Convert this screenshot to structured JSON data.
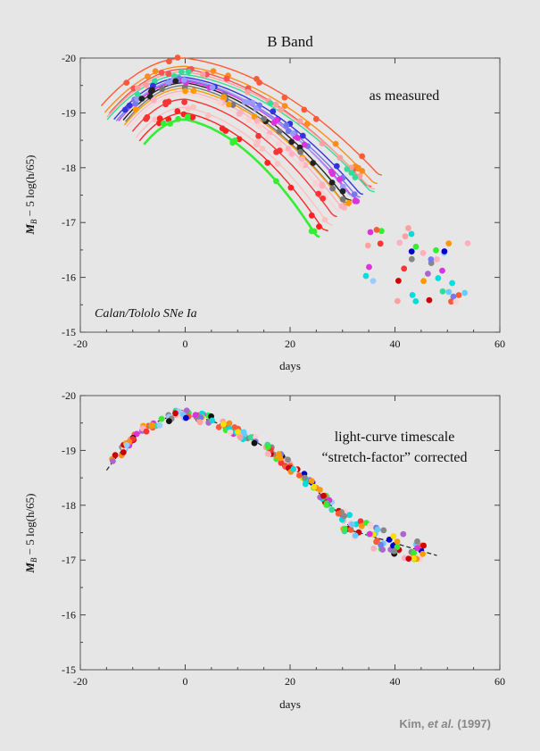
{
  "chart_data": [
    {
      "type": "scatter",
      "title": "B Band",
      "annotation": "as measured",
      "caption": "Calan/Tololo SNe Ia",
      "xlabel": "days",
      "ylabel_main": "M",
      "ylabel_sub": "B",
      "ylabel_rest": " − 5 log(h/65)",
      "xlim": [
        -20,
        60
      ],
      "ylim": [
        -20,
        -15
      ],
      "x_ticks": [
        -20,
        0,
        20,
        40,
        60
      ],
      "y_ticks": [
        -20,
        -19,
        -18,
        -17,
        -16,
        -15
      ],
      "y_tick_labels": [
        "-20",
        "-19",
        "-18",
        "-17",
        "-16",
        "-15"
      ],
      "curve_peaks": [
        {
          "color": "#ff5a36",
          "peak": -20.0,
          "stretch": 1.15
        },
        {
          "color": "#ff8c1a",
          "peak": -19.85,
          "stretch": 1.12
        },
        {
          "color": "#ff5252",
          "peak": -19.8,
          "stretch": 1.08
        },
        {
          "color": "#ffa0a0",
          "peak": -19.75,
          "stretch": 1.1
        },
        {
          "color": "#33dd99",
          "peak": -19.7,
          "stretch": 1.1
        },
        {
          "color": "#3333dd",
          "peak": -19.65,
          "stretch": 1.04
        },
        {
          "color": "#7777ee",
          "peak": -19.6,
          "stretch": 1.02
        },
        {
          "color": "#dd33dd",
          "peak": -19.58,
          "stretch": 1.0
        },
        {
          "color": "#9999ff",
          "peak": -19.62,
          "stretch": 0.98
        },
        {
          "color": "#222222",
          "peak": -19.55,
          "stretch": 0.96
        },
        {
          "color": "#777777",
          "peak": -19.5,
          "stretch": 0.94
        },
        {
          "color": "#ff9900",
          "peak": -19.45,
          "stretch": 0.95
        },
        {
          "color": "#ffb0c0",
          "peak": -19.4,
          "stretch": 0.93
        },
        {
          "color": "#ffd0d0",
          "peak": -19.35,
          "stretch": 0.9
        },
        {
          "color": "#ff3333",
          "peak": -19.25,
          "stretch": 0.88
        },
        {
          "color": "#ffc0c0",
          "peak": -19.1,
          "stretch": 0.85
        },
        {
          "color": "#ff2222",
          "peak": -19.0,
          "stretch": 0.82
        },
        {
          "color": "#33ee33",
          "peak": -18.88,
          "stretch": 0.78
        }
      ]
    },
    {
      "type": "scatter",
      "annotation_line1": "light-curve timescale",
      "annotation_line2": "“stretch-factor” corrected",
      "xlabel": "days",
      "ylabel_main": "M",
      "ylabel_sub": "B",
      "ylabel_rest": " − 5 log(h/65)",
      "xlim": [
        -20,
        60
      ],
      "ylim": [
        -20,
        -15
      ],
      "x_ticks": [
        -20,
        0,
        20,
        40,
        60
      ],
      "y_ticks": [
        -20,
        -19,
        -18,
        -17,
        -16,
        -15
      ],
      "y_tick_labels": [
        "-20",
        "-19",
        "-18",
        "-17",
        "-16",
        "-15"
      ],
      "template_peak": -19.65
    }
  ],
  "credit": {
    "author": "Kim, ",
    "etal": "et al.",
    "year": " (1997)"
  },
  "palette": [
    "#ff5a36",
    "#ff8c1a",
    "#ff3333",
    "#ffa0a0",
    "#33dd99",
    "#0000cc",
    "#7777ee",
    "#dd33dd",
    "#99ccff",
    "#111111",
    "#888888",
    "#ff9900",
    "#ffb0c0",
    "#ffd0d0",
    "#33ee33",
    "#ffdd00",
    "#00dddd",
    "#cc0000",
    "#aa66cc",
    "#66ccff"
  ]
}
